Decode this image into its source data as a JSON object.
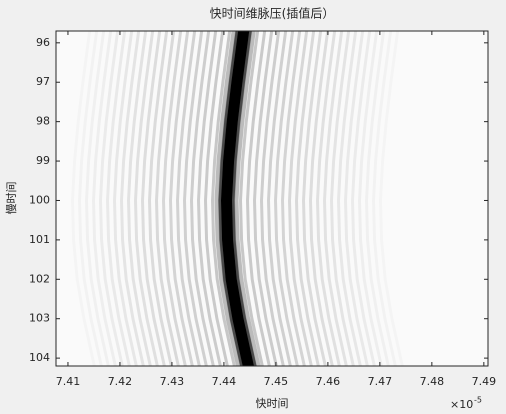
{
  "chart_data": {
    "type": "image",
    "title": "快时间维脉压(插值后）",
    "x_label": "快时间",
    "y_label": "慢时间",
    "x_multiplier": "×10",
    "x_exponent": "-5",
    "x": [
      7.4438,
      7.4425,
      7.4416,
      7.4409,
      7.4405,
      7.4407,
      7.4414,
      7.4427,
      7.4447
    ],
    "values": [
      95.7,
      97,
      98,
      99,
      100,
      101,
      102,
      103,
      104.2
    ],
    "color": "#000000",
    "xlim": [
      7.4077,
      7.4908
    ],
    "ylim": [
      95.7,
      104.2
    ],
    "y_reversed": true,
    "xticks": [
      7.41,
      7.42,
      7.43,
      7.44,
      7.45,
      7.46,
      7.47,
      7.48,
      7.49
    ],
    "yticks": [
      96,
      97,
      98,
      99,
      100,
      101,
      102,
      103,
      104
    ]
  }
}
